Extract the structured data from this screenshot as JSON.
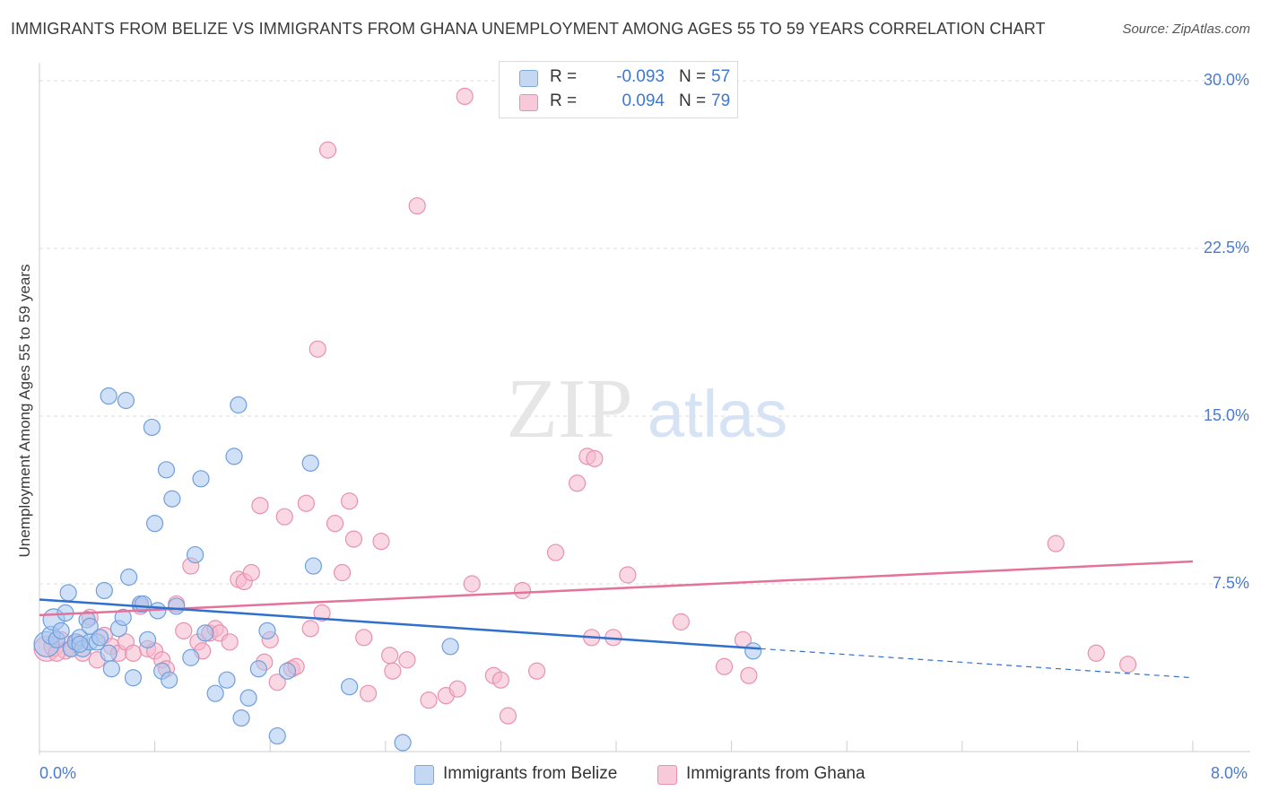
{
  "title": "IMMIGRANTS FROM BELIZE VS IMMIGRANTS FROM GHANA UNEMPLOYMENT AMONG AGES 55 TO 59 YEARS CORRELATION CHART",
  "source": "Source: ZipAtlas.com",
  "watermark": {
    "zip": "ZIP",
    "atlas": "atlas"
  },
  "legend": {
    "belize": {
      "r_label": "R =",
      "r_value": "-0.093",
      "n_label": "N =",
      "n_value": "57"
    },
    "ghana": {
      "r_label": "R =",
      "r_value": "0.094",
      "n_label": "N =",
      "n_value": "79"
    }
  },
  "colors": {
    "belize_fill": "#aac7ef",
    "belize_stroke": "#6f9fdc",
    "belize_line": "#2f6fce",
    "ghana_fill": "#f5b8cc",
    "ghana_stroke": "#e891ae",
    "ghana_line": "#e4729a",
    "tick_text": "#4a7bd0",
    "grid": "#dddddd"
  },
  "chart_data": {
    "type": "scatter",
    "title": "IMMIGRANTS FROM BELIZE VS IMMIGRANTS FROM GHANA UNEMPLOYMENT AMONG AGES 55 TO 59 YEARS CORRELATION CHART",
    "xlabel": "",
    "ylabel": "Unemployment Among Ages 55 to 59 years",
    "xlim": [
      0,
      8
    ],
    "ylim": [
      0,
      30.8
    ],
    "x_tick_labels": [
      "0.0%",
      "8.0%"
    ],
    "y_ticks": [
      7.5,
      15.0,
      22.5,
      30.0
    ],
    "y_tick_labels": [
      "7.5%",
      "15.0%",
      "22.5%",
      "30.0%"
    ],
    "grid": true,
    "series": [
      {
        "name": "Immigrants from Belize",
        "r": -0.093,
        "n": 57,
        "trend": {
          "x0": 0,
          "y0": 6.8,
          "x1": 5.0,
          "y1": 4.6,
          "dash_to_x": 8.0,
          "dash_to_y": 3.3
        },
        "points": [
          [
            0.05,
            4.8,
            14
          ],
          [
            0.08,
            5.2,
            10
          ],
          [
            0.1,
            5.9,
            12
          ],
          [
            0.12,
            5.0,
            9
          ],
          [
            0.15,
            5.4,
            9
          ],
          [
            0.18,
            6.2,
            9
          ],
          [
            0.2,
            7.1,
            9
          ],
          [
            0.22,
            4.6,
            9
          ],
          [
            0.25,
            4.9,
            9
          ],
          [
            0.28,
            5.1,
            9
          ],
          [
            0.3,
            4.6,
            9
          ],
          [
            0.33,
            5.9,
            9
          ],
          [
            0.35,
            4.9,
            9
          ],
          [
            0.4,
            4.9,
            9
          ],
          [
            0.42,
            5.1,
            9
          ],
          [
            0.45,
            7.2,
            9
          ],
          [
            0.48,
            4.4,
            9
          ],
          [
            0.5,
            3.7,
            9
          ],
          [
            0.55,
            5.5,
            9
          ],
          [
            0.58,
            6.0,
            9
          ],
          [
            0.62,
            7.8,
            9
          ],
          [
            0.65,
            3.3,
            9
          ],
          [
            0.7,
            6.6,
            9
          ],
          [
            0.72,
            6.6,
            9
          ],
          [
            0.78,
            14.5,
            9
          ],
          [
            0.8,
            10.2,
            9
          ],
          [
            0.82,
            6.3,
            9
          ],
          [
            0.85,
            3.6,
            9
          ],
          [
            0.88,
            12.6,
            9
          ],
          [
            0.9,
            3.2,
            9
          ],
          [
            0.92,
            11.3,
            9
          ],
          [
            0.95,
            6.5,
            9
          ],
          [
            1.05,
            4.2,
            9
          ],
          [
            1.08,
            8.8,
            9
          ],
          [
            1.12,
            12.2,
            9
          ],
          [
            1.15,
            5.3,
            9
          ],
          [
            1.22,
            2.6,
            9
          ],
          [
            1.3,
            3.2,
            9
          ],
          [
            1.35,
            13.2,
            9
          ],
          [
            1.38,
            15.5,
            9
          ],
          [
            1.4,
            1.5,
            9
          ],
          [
            1.45,
            2.4,
            9
          ],
          [
            1.52,
            3.7,
            9
          ],
          [
            1.58,
            5.4,
            9
          ],
          [
            1.65,
            0.7,
            9
          ],
          [
            1.72,
            3.6,
            9
          ],
          [
            1.88,
            12.9,
            9
          ],
          [
            1.9,
            8.3,
            9
          ],
          [
            2.15,
            2.9,
            9
          ],
          [
            2.52,
            0.4,
            9
          ],
          [
            2.85,
            4.7,
            9
          ],
          [
            4.95,
            4.5,
            9
          ],
          [
            0.48,
            15.9,
            9
          ],
          [
            0.6,
            15.7,
            9
          ],
          [
            0.35,
            5.6,
            9
          ],
          [
            0.75,
            5.0,
            9
          ],
          [
            0.28,
            4.8,
            9
          ]
        ]
      },
      {
        "name": "Immigrants from Ghana",
        "r": 0.094,
        "n": 79,
        "trend": {
          "x0": 0,
          "y0": 6.1,
          "x1": 8.0,
          "y1": 8.5
        },
        "points": [
          [
            0.05,
            4.6,
            14
          ],
          [
            0.1,
            4.7,
            11
          ],
          [
            0.15,
            5.0,
            9
          ],
          [
            0.18,
            4.5,
            9
          ],
          [
            0.22,
            4.6,
            9
          ],
          [
            0.26,
            4.9,
            9
          ],
          [
            0.3,
            4.4,
            9
          ],
          [
            0.35,
            6.0,
            9
          ],
          [
            0.4,
            4.1,
            9
          ],
          [
            0.45,
            5.2,
            9
          ],
          [
            0.5,
            4.7,
            9
          ],
          [
            0.55,
            4.4,
            9
          ],
          [
            0.6,
            4.9,
            9
          ],
          [
            0.65,
            4.4,
            9
          ],
          [
            0.7,
            6.5,
            9
          ],
          [
            0.75,
            4.6,
            9
          ],
          [
            0.8,
            4.5,
            9
          ],
          [
            0.85,
            4.1,
            9
          ],
          [
            0.88,
            3.7,
            9
          ],
          [
            0.95,
            6.6,
            9
          ],
          [
            1.0,
            5.4,
            9
          ],
          [
            1.05,
            8.3,
            9
          ],
          [
            1.1,
            4.9,
            9
          ],
          [
            1.13,
            4.5,
            9
          ],
          [
            1.18,
            5.3,
            9
          ],
          [
            1.22,
            5.5,
            9
          ],
          [
            1.25,
            5.3,
            9
          ],
          [
            1.32,
            4.9,
            9
          ],
          [
            1.38,
            7.7,
            9
          ],
          [
            1.42,
            7.6,
            9
          ],
          [
            1.47,
            8.0,
            9
          ],
          [
            1.53,
            11.0,
            9
          ],
          [
            1.56,
            4.0,
            9
          ],
          [
            1.6,
            5.0,
            9
          ],
          [
            1.65,
            3.1,
            9
          ],
          [
            1.7,
            10.5,
            9
          ],
          [
            1.75,
            3.7,
            9
          ],
          [
            1.78,
            3.8,
            9
          ],
          [
            1.85,
            11.1,
            9
          ],
          [
            1.88,
            5.5,
            9
          ],
          [
            1.93,
            18.0,
            9
          ],
          [
            1.96,
            6.2,
            9
          ],
          [
            2.0,
            26.9,
            9
          ],
          [
            2.05,
            10.2,
            9
          ],
          [
            2.1,
            8.0,
            9
          ],
          [
            2.15,
            11.2,
            9
          ],
          [
            2.18,
            9.5,
            9
          ],
          [
            2.25,
            5.1,
            9
          ],
          [
            2.28,
            2.6,
            9
          ],
          [
            2.37,
            9.4,
            9
          ],
          [
            2.43,
            4.3,
            9
          ],
          [
            2.45,
            3.6,
            9
          ],
          [
            2.55,
            4.1,
            9
          ],
          [
            2.62,
            24.4,
            9
          ],
          [
            2.7,
            2.3,
            9
          ],
          [
            2.82,
            2.5,
            9
          ],
          [
            2.9,
            2.8,
            9
          ],
          [
            2.95,
            29.3,
            9
          ],
          [
            3.0,
            7.5,
            9
          ],
          [
            3.15,
            3.4,
            9
          ],
          [
            3.2,
            3.2,
            9
          ],
          [
            3.25,
            1.6,
            9
          ],
          [
            3.35,
            7.2,
            9
          ],
          [
            3.45,
            3.6,
            9
          ],
          [
            3.58,
            8.9,
            9
          ],
          [
            3.73,
            12.0,
            9
          ],
          [
            3.8,
            13.2,
            9
          ],
          [
            3.83,
            5.1,
            9
          ],
          [
            3.85,
            13.1,
            9
          ],
          [
            3.98,
            5.1,
            9
          ],
          [
            4.08,
            7.9,
            9
          ],
          [
            4.45,
            5.8,
            9
          ],
          [
            4.75,
            3.8,
            9
          ],
          [
            4.88,
            5.0,
            9
          ],
          [
            4.92,
            3.4,
            9
          ],
          [
            7.05,
            9.3,
            9
          ],
          [
            7.33,
            4.4,
            9
          ],
          [
            7.55,
            3.9,
            9
          ],
          [
            0.12,
            4.4,
            9
          ]
        ]
      }
    ]
  }
}
